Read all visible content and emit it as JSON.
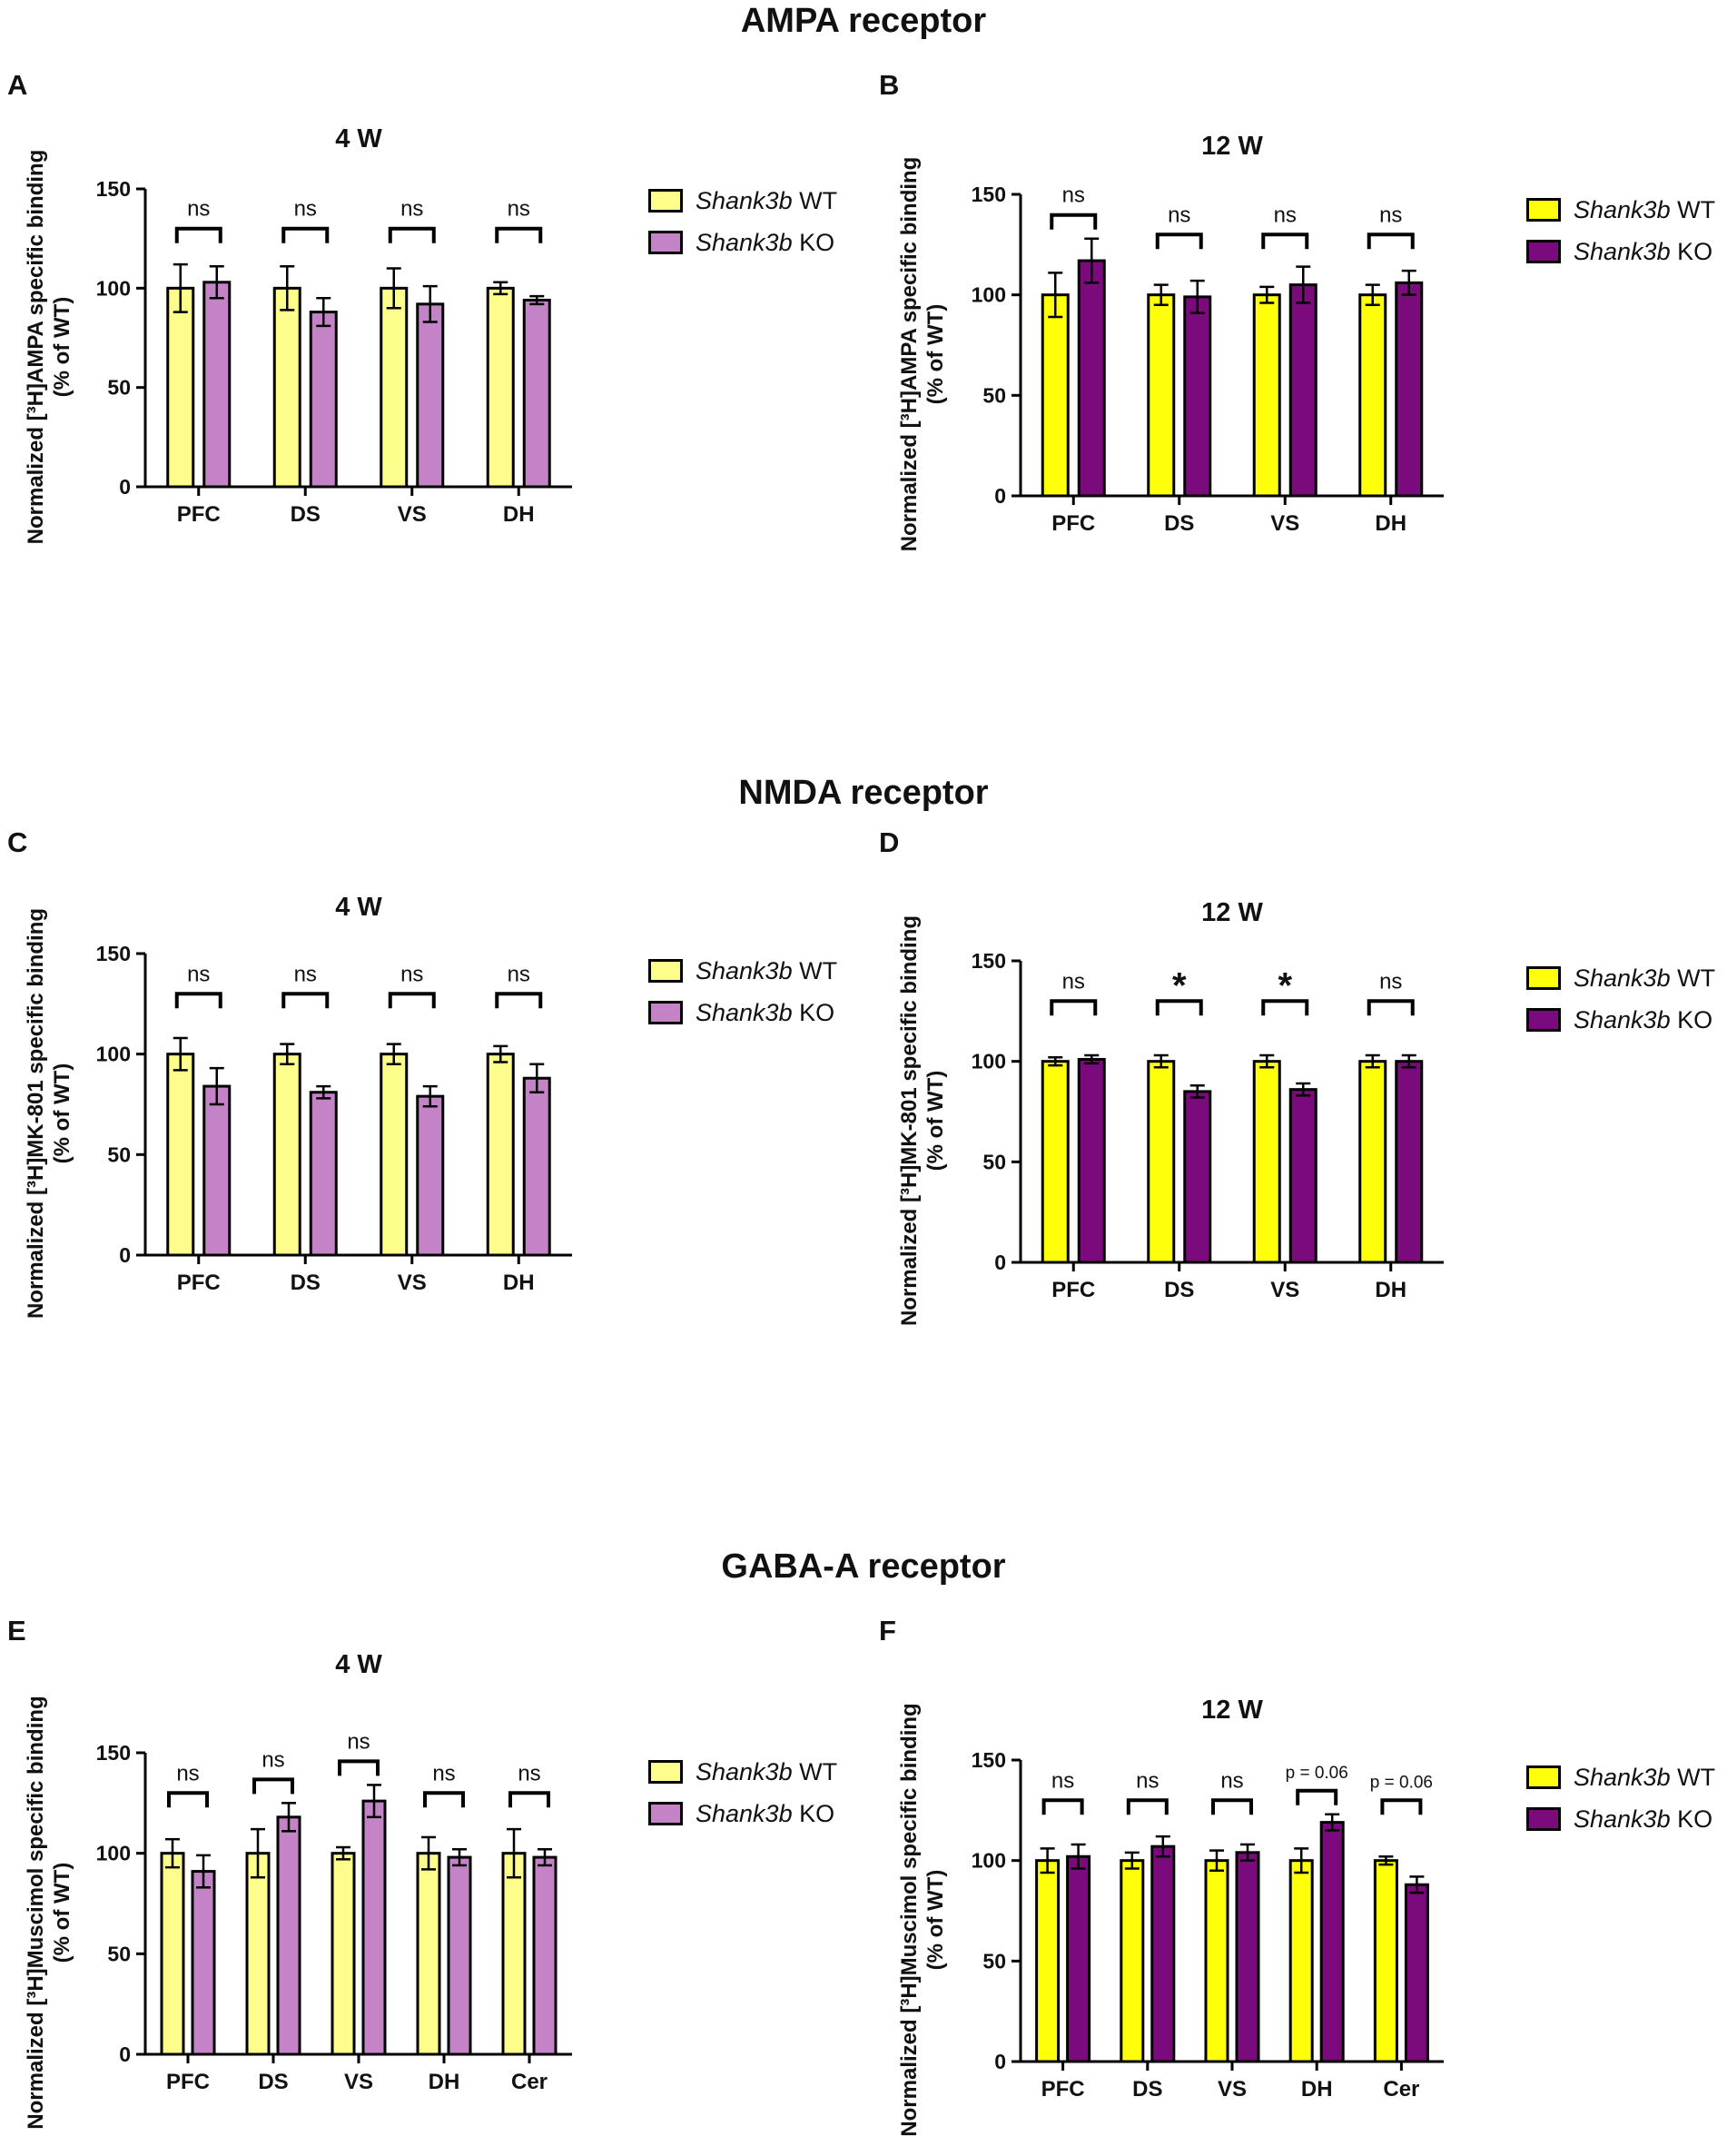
{
  "sections": {
    "ampa": "AMPA receptor",
    "nmda": "NMDA receptor",
    "gaba": "GABA-A receptor"
  },
  "colors": {
    "wt_4w": "#fdfd8c",
    "ko_4w": "#c483c6",
    "wt_12w": "#ffff0a",
    "ko_12w": "#7b0a7c",
    "outline": "#000000"
  },
  "legend": {
    "gene": "Shank3b",
    "wt": "WT",
    "ko": "KO"
  },
  "chart_data": [
    {
      "panel": "A",
      "type": "bar",
      "title": "4 W",
      "ylabel": "Normalized [³H]AMPA specific binding (% of WT)",
      "ylim": [
        0,
        150
      ],
      "yticks": [
        0,
        50,
        100,
        150
      ],
      "categories": [
        "PFC",
        "DS",
        "VS",
        "DH"
      ],
      "series": [
        {
          "name": "Shank3b WT",
          "values": [
            100,
            100,
            100,
            100
          ],
          "errors": [
            12,
            11,
            10,
            3
          ]
        },
        {
          "name": "Shank3b KO",
          "values": [
            103,
            88,
            92,
            94
          ],
          "errors": [
            8,
            7,
            9,
            2
          ]
        }
      ],
      "annotations": [
        "ns",
        "ns",
        "ns",
        "ns"
      ]
    },
    {
      "panel": "B",
      "type": "bar",
      "title": "12 W",
      "ylabel": "Normalized [³H]AMPA specific binding (% of WT)",
      "ylim": [
        0,
        150
      ],
      "yticks": [
        0,
        50,
        100,
        150
      ],
      "categories": [
        "PFC",
        "DS",
        "VS",
        "DH"
      ],
      "series": [
        {
          "name": "Shank3b WT",
          "values": [
            100,
            100,
            100,
            100
          ],
          "errors": [
            11,
            5,
            4,
            5
          ]
        },
        {
          "name": "Shank3b KO",
          "values": [
            117,
            99,
            105,
            106
          ],
          "errors": [
            11,
            8,
            9,
            6
          ]
        }
      ],
      "annotations": [
        "ns",
        "ns",
        "ns",
        "ns"
      ]
    },
    {
      "panel": "C",
      "type": "bar",
      "title": "4 W",
      "ylabel": "Normalized [³H]MK-801 specific binding (% of WT)",
      "ylim": [
        0,
        150
      ],
      "yticks": [
        0,
        50,
        100,
        150
      ],
      "categories": [
        "PFC",
        "DS",
        "VS",
        "DH"
      ],
      "series": [
        {
          "name": "Shank3b WT",
          "values": [
            100,
            100,
            100,
            100
          ],
          "errors": [
            8,
            5,
            5,
            4
          ]
        },
        {
          "name": "Shank3b KO",
          "values": [
            84,
            81,
            79,
            88
          ],
          "errors": [
            9,
            3,
            5,
            7
          ]
        }
      ],
      "annotations": [
        "ns",
        "ns",
        "ns",
        "ns"
      ]
    },
    {
      "panel": "D",
      "type": "bar",
      "title": "12 W",
      "ylabel": "Normalized [³H]MK-801 specific binding (% of WT)",
      "ylim": [
        0,
        150
      ],
      "yticks": [
        0,
        50,
        100,
        150
      ],
      "categories": [
        "PFC",
        "DS",
        "VS",
        "DH"
      ],
      "series": [
        {
          "name": "Shank3b WT",
          "values": [
            100,
            100,
            100,
            100
          ],
          "errors": [
            2,
            3,
            3,
            3
          ]
        },
        {
          "name": "Shank3b KO",
          "values": [
            101,
            85,
            86,
            100
          ],
          "errors": [
            2,
            3,
            3,
            3
          ]
        }
      ],
      "annotations": [
        "ns",
        "*",
        "*",
        "ns"
      ]
    },
    {
      "panel": "E",
      "type": "bar",
      "title": "4 W",
      "ylabel": "Normalized [³H]Muscimol specific binding (% of WT)",
      "ylim": [
        0,
        150
      ],
      "yticks": [
        0,
        50,
        100,
        150
      ],
      "categories": [
        "PFC",
        "DS",
        "VS",
        "DH",
        "Cer"
      ],
      "series": [
        {
          "name": "Shank3b WT",
          "values": [
            100,
            100,
            100,
            100,
            100
          ],
          "errors": [
            7,
            12,
            3,
            8,
            12
          ]
        },
        {
          "name": "Shank3b KO",
          "values": [
            91,
            118,
            126,
            98,
            98
          ],
          "errors": [
            8,
            7,
            8,
            4,
            4
          ]
        }
      ],
      "annotations": [
        "ns",
        "ns",
        "ns",
        "ns",
        "ns"
      ]
    },
    {
      "panel": "F",
      "type": "bar",
      "title": "12 W",
      "ylabel": "Normalized [³H]Muscimol specific binding (% of WT)",
      "ylim": [
        0,
        150
      ],
      "yticks": [
        0,
        50,
        100,
        150
      ],
      "categories": [
        "PFC",
        "DS",
        "VS",
        "DH",
        "Cer"
      ],
      "series": [
        {
          "name": "Shank3b WT",
          "values": [
            100,
            100,
            100,
            100,
            100
          ],
          "errors": [
            6,
            4,
            5,
            6,
            2
          ]
        },
        {
          "name": "Shank3b KO",
          "values": [
            102,
            107,
            104,
            119,
            88
          ],
          "errors": [
            6,
            5,
            4,
            4,
            4
          ]
        }
      ],
      "annotations": [
        "ns",
        "ns",
        "ns",
        "p = 0.06",
        "p = 0.06"
      ]
    }
  ]
}
